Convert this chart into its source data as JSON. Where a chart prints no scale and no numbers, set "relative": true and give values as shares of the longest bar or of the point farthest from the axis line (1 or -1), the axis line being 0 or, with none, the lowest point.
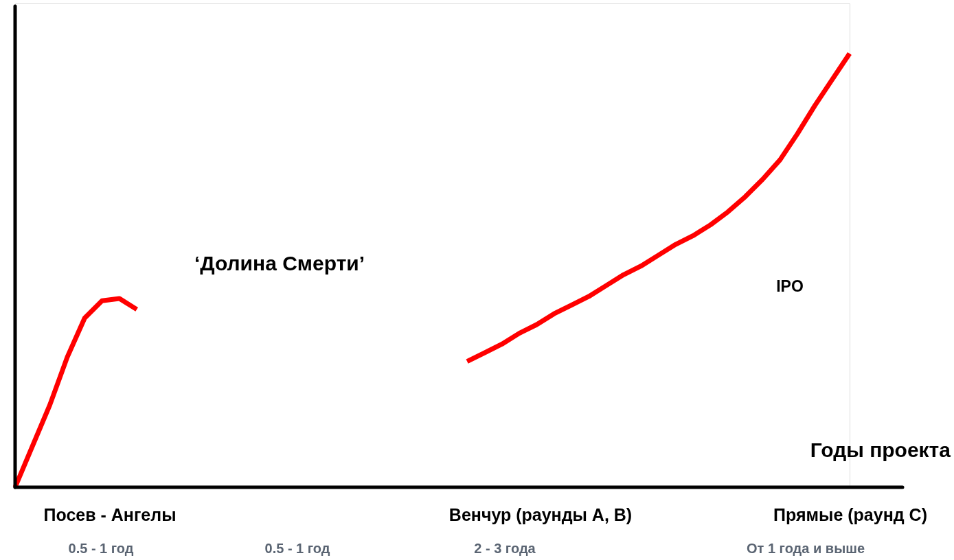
{
  "chart_data": {
    "type": "line",
    "relative": true,
    "categories": [
      null,
      null,
      null,
      null,
      null,
      null,
      null,
      null,
      null,
      null,
      null,
      null,
      null,
      null,
      null,
      null,
      null,
      null,
      null,
      null,
      null,
      null,
      null,
      null,
      null,
      null,
      null,
      null,
      null,
      null,
      null,
      null,
      null,
      null,
      null,
      null,
      null,
      null,
      null,
      null,
      null,
      null,
      null,
      null,
      null,
      null,
      null,
      null,
      null
    ],
    "series": [
      {
        "color": "#ff0000",
        "values": [
          0,
          0.095,
          0.19,
          0.3,
          0.39,
          0.43,
          0.435,
          0.41,
          null,
          null,
          null,
          null,
          null,
          null,
          null,
          null,
          null,
          null,
          null,
          null,
          null,
          null,
          null,
          null,
          null,
          null,
          null,
          null,
          null,
          null,
          null,
          null,
          null,
          null,
          null,
          null,
          null,
          null,
          null,
          null,
          null,
          null,
          null,
          null,
          null,
          null,
          null,
          null,
          null
        ]
      },
      {
        "color": "#ff0000",
        "values": [
          null,
          null,
          null,
          null,
          null,
          null,
          null,
          null,
          null,
          null,
          null,
          null,
          null,
          null,
          null,
          null,
          null,
          null,
          null,
          null,
          null,
          null,
          null,
          null,
          null,
          null,
          0.29,
          0.31,
          0.33,
          0.355,
          0.375,
          0.4,
          0.42,
          0.44,
          0.465,
          0.49,
          0.51,
          0.535,
          0.56,
          0.58,
          0.605,
          0.635,
          0.67,
          0.71,
          0.755,
          0.815,
          0.88,
          0.94,
          1.0
        ]
      }
    ],
    "annotations": [
      "‘Долина Смерти’",
      "IPO",
      "Годы проекта",
      "Посев - Ангелы",
      "Венчур  (раунды А, В)",
      "Прямые (раунд С)",
      "0.5 - 1 год",
      "0.5 - 1 год",
      "2 - 3 года",
      "От 1 года и выше"
    ],
    "grid": false,
    "marker": "none",
    "line_style": "solid"
  }
}
